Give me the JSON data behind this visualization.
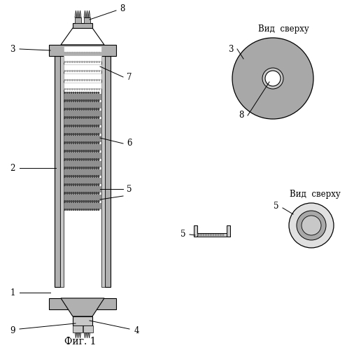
{
  "bg_color": "#ffffff",
  "gray_fill": "#b0b0b0",
  "gray_light": "#c8c8c8",
  "gray_mid": "#a8a8a8",
  "sorbent_dark": "#909090",
  "sorbent_light": "#d0d0d0",
  "white": "#ffffff",
  "fig_caption": "Фиг. 1",
  "vid_sverhu": "Вид  сверху"
}
